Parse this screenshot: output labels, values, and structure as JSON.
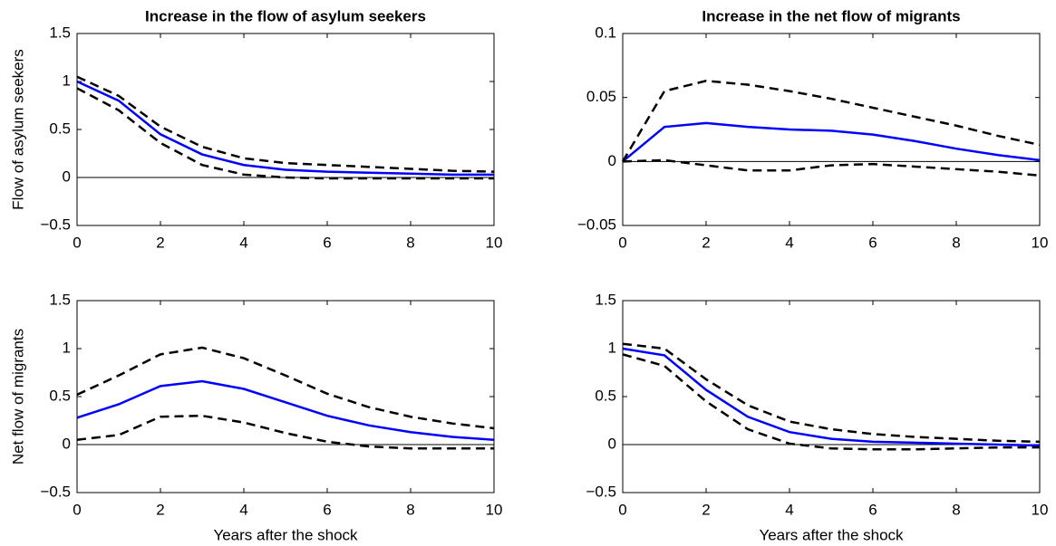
{
  "chart_data": [
    {
      "type": "line",
      "title": "Increase in the flow of asylum seekers",
      "ylabel": "Flow of asylum seekers",
      "x": [
        0,
        1,
        2,
        3,
        4,
        5,
        6,
        7,
        8,
        9,
        10
      ],
      "xlim": [
        0,
        10
      ],
      "xticks": [
        0,
        2,
        4,
        6,
        8,
        10
      ],
      "ylim": [
        -0.5,
        1.5
      ],
      "yticks": [
        {
          "value": -0.5,
          "label": "−0.5"
        },
        0,
        0.5,
        1,
        1.5
      ],
      "zero_line": true,
      "series": [
        {
          "color": "#0000ff",
          "dash": false,
          "values": [
            1.0,
            0.8,
            0.45,
            0.24,
            0.13,
            0.08,
            0.06,
            0.05,
            0.04,
            0.03,
            0.03
          ]
        },
        {
          "color": "#000000",
          "dash": true,
          "values": [
            1.05,
            0.85,
            0.53,
            0.32,
            0.2,
            0.15,
            0.13,
            0.11,
            0.09,
            0.07,
            0.06
          ]
        },
        {
          "color": "#000000",
          "dash": true,
          "values": [
            0.93,
            0.7,
            0.36,
            0.13,
            0.03,
            0.0,
            -0.01,
            -0.01,
            -0.01,
            -0.01,
            -0.01
          ]
        }
      ]
    },
    {
      "type": "line",
      "title": "Increase in the net flow of  migrants",
      "x": [
        0,
        1,
        2,
        3,
        4,
        5,
        6,
        7,
        8,
        9,
        10
      ],
      "xlim": [
        0,
        10
      ],
      "xticks": [
        0,
        2,
        4,
        6,
        8,
        10
      ],
      "ylim": [
        -0.05,
        0.1
      ],
      "yticks": [
        {
          "value": -0.05,
          "label": "−0.05"
        },
        0,
        0.05,
        0.1
      ],
      "zero_line": true,
      "series": [
        {
          "color": "#0000ff",
          "dash": false,
          "values": [
            0,
            0.027,
            0.03,
            0.027,
            0.025,
            0.024,
            0.021,
            0.016,
            0.01,
            0.005,
            0.001
          ]
        },
        {
          "color": "#000000",
          "dash": true,
          "values": [
            0,
            0.055,
            0.063,
            0.06,
            0.055,
            0.049,
            0.042,
            0.035,
            0.028,
            0.02,
            0.013
          ]
        },
        {
          "color": "#000000",
          "dash": true,
          "values": [
            0,
            0.001,
            -0.003,
            -0.007,
            -0.007,
            -0.003,
            -0.002,
            -0.004,
            -0.006,
            -0.008,
            -0.011
          ]
        }
      ]
    },
    {
      "type": "line",
      "ylabel": "Net flow of  migrants",
      "xlabel": "Years after the shock",
      "x": [
        0,
        1,
        2,
        3,
        4,
        5,
        6,
        7,
        8,
        9,
        10
      ],
      "xlim": [
        0,
        10
      ],
      "xticks": [
        0,
        2,
        4,
        6,
        8,
        10
      ],
      "ylim": [
        -0.5,
        1.5
      ],
      "yticks": [
        {
          "value": -0.5,
          "label": "−0.5"
        },
        0,
        0.5,
        1,
        1.5
      ],
      "zero_line": true,
      "series": [
        {
          "color": "#0000ff",
          "dash": false,
          "values": [
            0.28,
            0.42,
            0.61,
            0.66,
            0.58,
            0.44,
            0.3,
            0.2,
            0.13,
            0.08,
            0.05
          ]
        },
        {
          "color": "#000000",
          "dash": true,
          "values": [
            0.52,
            0.72,
            0.94,
            1.01,
            0.9,
            0.72,
            0.53,
            0.39,
            0.29,
            0.22,
            0.17
          ]
        },
        {
          "color": "#000000",
          "dash": true,
          "values": [
            0.05,
            0.1,
            0.29,
            0.3,
            0.23,
            0.12,
            0.03,
            -0.02,
            -0.04,
            -0.04,
            -0.04
          ]
        }
      ]
    },
    {
      "type": "line",
      "xlabel": "Years after the shock",
      "x": [
        0,
        1,
        2,
        3,
        4,
        5,
        6,
        7,
        8,
        9,
        10
      ],
      "xlim": [
        0,
        10
      ],
      "xticks": [
        0,
        2,
        4,
        6,
        8,
        10
      ],
      "ylim": [
        -0.5,
        1.5
      ],
      "yticks": [
        {
          "value": -0.5,
          "label": "−0.5"
        },
        0,
        0.5,
        1,
        1.5
      ],
      "zero_line": true,
      "series": [
        {
          "color": "#0000ff",
          "dash": false,
          "values": [
            1.0,
            0.93,
            0.57,
            0.29,
            0.13,
            0.06,
            0.03,
            0.02,
            0.01,
            0.0,
            -0.01
          ]
        },
        {
          "color": "#000000",
          "dash": true,
          "values": [
            1.05,
            1.0,
            0.68,
            0.41,
            0.24,
            0.16,
            0.11,
            0.08,
            0.06,
            0.04,
            0.03
          ]
        },
        {
          "color": "#000000",
          "dash": true,
          "values": [
            0.94,
            0.82,
            0.45,
            0.16,
            0.01,
            -0.04,
            -0.05,
            -0.05,
            -0.04,
            -0.03,
            -0.03
          ]
        }
      ]
    }
  ]
}
